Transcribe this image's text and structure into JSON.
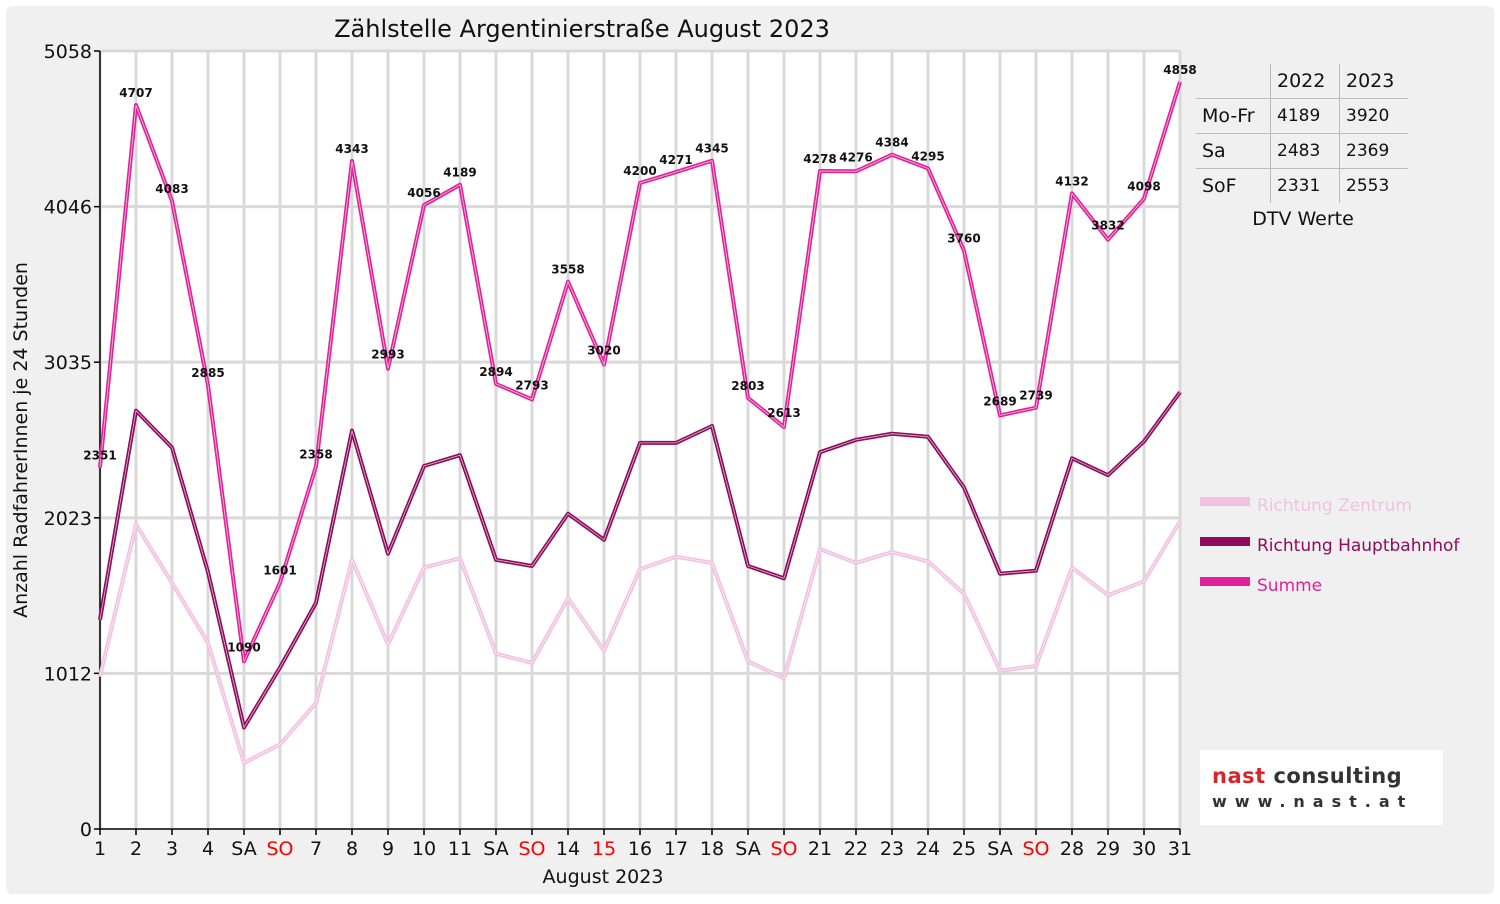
{
  "chart_data": {
    "type": "line",
    "title": "Zählstelle Argentinierstraße August 2023",
    "xlabel": "August 2023",
    "ylabel": "Anzahl RadfahrerInnen je 24 Stunden",
    "ylim": [
      0,
      5058
    ],
    "yticks": [
      0,
      1012,
      2023,
      3035,
      4046,
      5058
    ],
    "x": [
      "1",
      "2",
      "3",
      "4",
      "SA",
      "SO",
      "7",
      "8",
      "9",
      "10",
      "11",
      "SA",
      "SO",
      "14",
      "15",
      "16",
      "17",
      "18",
      "SA",
      "SO",
      "21",
      "22",
      "23",
      "24",
      "25",
      "SA",
      "SO",
      "28",
      "29",
      "30",
      "31"
    ],
    "x_highlight": [
      5,
      12,
      14,
      19,
      26
    ],
    "grid": true,
    "legend_position": "right",
    "series": [
      {
        "name": "Richtung Zentrum",
        "color": "#f2c0e2",
        "values": [
          990,
          1980,
          1600,
          1210,
          430,
          550,
          820,
          1750,
          1200,
          1700,
          1760,
          1140,
          1080,
          1500,
          1160,
          1690,
          1770,
          1730,
          1090,
          980,
          1820,
          1730,
          1800,
          1740,
          1530,
          1030,
          1060,
          1700,
          1520,
          1610,
          2000
        ]
      },
      {
        "name": "Richtung Hauptbahnhof",
        "color": "#8e0b5e",
        "values": [
          1360,
          2720,
          2480,
          1670,
          660,
          1050,
          1470,
          2590,
          1790,
          2360,
          2430,
          1750,
          1710,
          2050,
          1880,
          2510,
          2510,
          2620,
          1710,
          1630,
          2450,
          2530,
          2570,
          2550,
          2220,
          1660,
          1680,
          2410,
          2300,
          2520,
          2840
        ]
      },
      {
        "name": "Summe",
        "color": "#e0229a",
        "values": [
          2351,
          4707,
          4083,
          2885,
          1090,
          1601,
          2358,
          4343,
          2993,
          4056,
          4189,
          2894,
          2793,
          3558,
          3020,
          4200,
          4271,
          4345,
          2803,
          2613,
          4278,
          4276,
          4384,
          4295,
          3760,
          2689,
          2739,
          4132,
          3832,
          4098,
          4858
        ]
      }
    ],
    "data_labels": [
      "2351",
      "4707",
      "4083",
      "2885",
      "1090",
      "1601",
      "2358",
      "4343",
      "2993",
      "4056",
      "4189",
      "2894",
      "2793",
      "3558",
      "3020",
      "4200",
      "4271",
      "4345",
      "2803",
      "2613",
      "4278",
      "4276",
      "4384",
      "4295",
      "3760",
      "2689",
      "2739",
      "4132",
      "3832",
      "4098",
      "4858"
    ]
  },
  "dtv": {
    "headers": [
      "",
      "2022",
      "2023"
    ],
    "rows": [
      {
        "label": "Mo-Fr",
        "v2022": "4189",
        "v2023": "3920"
      },
      {
        "label": "Sa",
        "v2022": "2483",
        "v2023": "2369"
      },
      {
        "label": "SoF",
        "v2022": "2331",
        "v2023": "2553"
      }
    ],
    "caption": "DTV Werte"
  },
  "logo": {
    "part1": "nast",
    "part2": " consulting",
    "url_text": "www.nast.at"
  },
  "colors": {
    "highlight_label": "#ff0000",
    "grid": "#d9d9d9",
    "outer_bg": "#f0f0f0"
  }
}
